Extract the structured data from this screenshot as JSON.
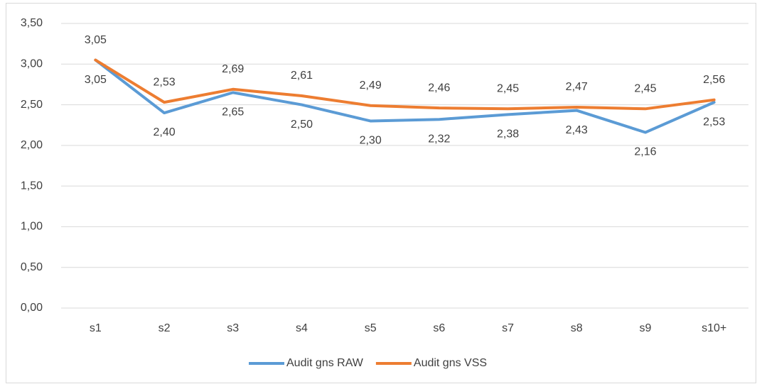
{
  "chart_data": {
    "type": "line",
    "categories": [
      "s1",
      "s2",
      "s3",
      "s4",
      "s5",
      "s6",
      "s7",
      "s8",
      "s9",
      "s10+"
    ],
    "series": [
      {
        "name": "Audit gns RAW",
        "color": "#5b9bd5",
        "values": [
          3.05,
          2.4,
          2.65,
          2.5,
          2.3,
          2.32,
          2.38,
          2.43,
          2.16,
          2.53
        ],
        "value_labels": [
          "3,05",
          "2,40",
          "2,65",
          "2,50",
          "2,30",
          "2,32",
          "2,38",
          "2,43",
          "2,16",
          "2,53"
        ]
      },
      {
        "name": "Audit gns VSS",
        "color": "#ed7d31",
        "values": [
          3.05,
          2.53,
          2.69,
          2.61,
          2.49,
          2.46,
          2.45,
          2.47,
          2.45,
          2.56
        ],
        "value_labels": [
          "3,05",
          "2,53",
          "2,69",
          "2,61",
          "2,49",
          "2,46",
          "2,45",
          "2,47",
          "2,45",
          "2,56"
        ]
      }
    ],
    "ylim": [
      0,
      3.5
    ],
    "yticks": [
      {
        "value": 0,
        "label": "0,00"
      },
      {
        "value": 0.5,
        "label": "0,50"
      },
      {
        "value": 1,
        "label": "1,00"
      },
      {
        "value": 1.5,
        "label": "1,50"
      },
      {
        "value": 2,
        "label": "2,00"
      },
      {
        "value": 2.5,
        "label": "2,50"
      },
      {
        "value": 3,
        "label": "3,00"
      },
      {
        "value": 3.5,
        "label": "3,50"
      }
    ],
    "grid": true,
    "legend": "bottom"
  }
}
